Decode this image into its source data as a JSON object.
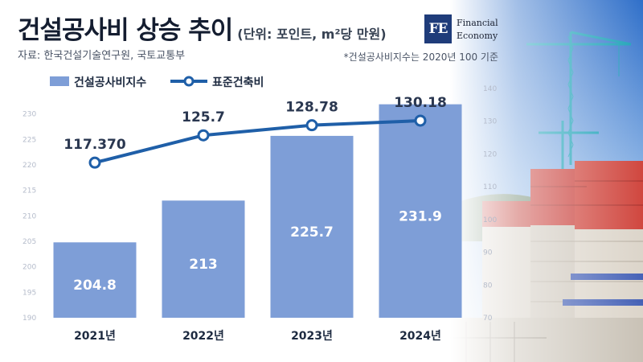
{
  "header": {
    "title": "건설공사비 상승 추이",
    "unit": "(단위: 포인트, m²당 만원)",
    "source": "자료: 한국건설기술연구원, 국토교통부",
    "note": "*건설공사비지수는 2020년 100 기준"
  },
  "logo": {
    "mark": "FE",
    "line1": "Financial",
    "line2": "Economy"
  },
  "colors": {
    "bar": "#7e9ed7",
    "line": "#1f5fa8",
    "title": "#141d30"
  },
  "chart_data": {
    "type": "bar",
    "categories": [
      "2021년",
      "2022년",
      "2023년",
      "2024년"
    ],
    "series": [
      {
        "name": "건설공사비지수",
        "type": "bar",
        "axis": "left",
        "values": [
          204.8,
          213,
          225.7,
          231.9
        ],
        "labels": [
          "204.8",
          "213",
          "225.7",
          "231.9"
        ]
      },
      {
        "name": "표준건축비",
        "type": "line",
        "axis": "right",
        "values": [
          117.37,
          125.7,
          128.78,
          130.18
        ],
        "labels": [
          "117.370",
          "125.7",
          "128.78",
          "130.18"
        ]
      }
    ],
    "y_left": {
      "ylim": [
        190,
        235
      ],
      "ticks": [
        190,
        195,
        200,
        205,
        210,
        215,
        220,
        225,
        230
      ]
    },
    "y_right": {
      "ylim": [
        70,
        140
      ],
      "ticks": [
        70,
        80,
        90,
        100,
        110,
        120,
        130,
        140
      ]
    },
    "legend": "top-left",
    "grid": false
  }
}
